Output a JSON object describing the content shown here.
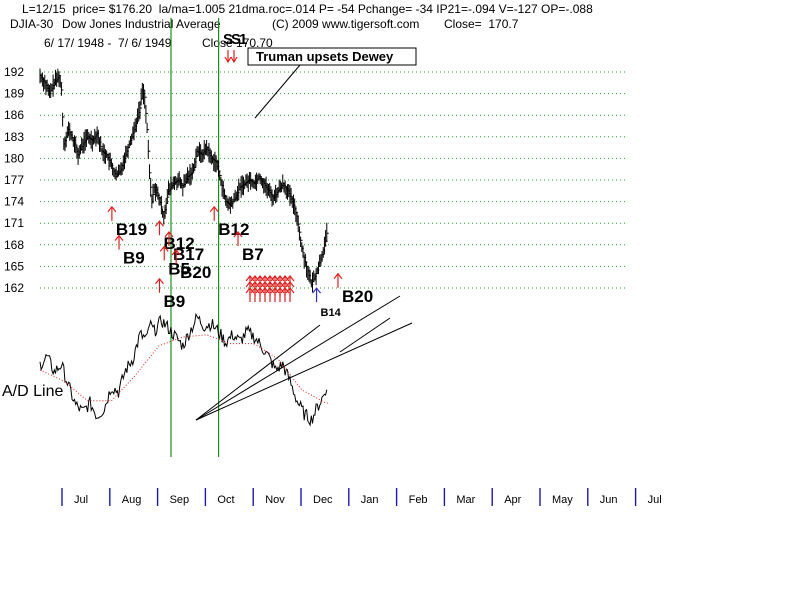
{
  "header": {
    "line1": "L=12/15  price= $176.20  la/ma=1.005 21dma.roc=.014 P= -54 Pchange= -34 IP21=-.094 V=-127 OP=-.088",
    "symbol": "DJIA-30",
    "name": "Dow Jones Industrial Average",
    "copyright": "(C) 2009 www.tigersoft.com",
    "close_label": "Close=  170.7",
    "date_range": "6/ 17/ 1948 -  7/ 6/ 1949",
    "close_overlay": "Close 170.70",
    "top_signal": "SS1"
  },
  "chart_data": {
    "type": "line",
    "title": "",
    "price_panel": {
      "type": "ohlc-bar",
      "y_ticks": [
        192,
        189,
        186,
        183,
        180,
        177,
        174,
        171,
        168,
        165,
        162
      ],
      "ylim": [
        159.5,
        193.5
      ],
      "grid": "horizontal dotted green",
      "close_series": [
        {
          "t": 0.0,
          "v": 191.5
        },
        {
          "t": 0.2,
          "v": 190.5
        },
        {
          "t": 0.4,
          "v": 189.0
        },
        {
          "t": 0.6,
          "v": 190.5
        },
        {
          "t": 0.8,
          "v": 191.5
        },
        {
          "t": 0.9,
          "v": 189.5
        },
        {
          "t": 1.0,
          "v": 182.0
        },
        {
          "t": 1.2,
          "v": 184.0
        },
        {
          "t": 1.4,
          "v": 182.5
        },
        {
          "t": 1.6,
          "v": 180.5
        },
        {
          "t": 1.8,
          "v": 182.0
        },
        {
          "t": 2.0,
          "v": 183.0
        },
        {
          "t": 2.2,
          "v": 182.5
        },
        {
          "t": 2.4,
          "v": 183.5
        },
        {
          "t": 2.6,
          "v": 181.0
        },
        {
          "t": 2.8,
          "v": 180.5
        },
        {
          "t": 3.0,
          "v": 179.0
        },
        {
          "t": 3.2,
          "v": 177.5
        },
        {
          "t": 3.4,
          "v": 178.5
        },
        {
          "t": 3.6,
          "v": 180.5
        },
        {
          "t": 3.8,
          "v": 182.5
        },
        {
          "t": 4.0,
          "v": 184.5
        },
        {
          "t": 4.2,
          "v": 187.0
        },
        {
          "t": 4.3,
          "v": 189.5
        },
        {
          "t": 4.4,
          "v": 188.5
        },
        {
          "t": 4.5,
          "v": 184.0
        },
        {
          "t": 4.6,
          "v": 178.0
        },
        {
          "t": 4.7,
          "v": 174.0
        },
        {
          "t": 4.8,
          "v": 176.0
        },
        {
          "t": 5.0,
          "v": 174.5
        },
        {
          "t": 5.2,
          "v": 172.0
        },
        {
          "t": 5.4,
          "v": 175.5
        },
        {
          "t": 5.6,
          "v": 176.5
        },
        {
          "t": 5.8,
          "v": 177.0
        },
        {
          "t": 6.0,
          "v": 176.0
        },
        {
          "t": 6.2,
          "v": 177.5
        },
        {
          "t": 6.4,
          "v": 178.0
        },
        {
          "t": 6.6,
          "v": 181.0
        },
        {
          "t": 6.8,
          "v": 180.5
        },
        {
          "t": 7.0,
          "v": 181.5
        },
        {
          "t": 7.2,
          "v": 180.0
        },
        {
          "t": 7.4,
          "v": 179.5
        },
        {
          "t": 7.6,
          "v": 177.0
        },
        {
          "t": 7.8,
          "v": 174.0
        },
        {
          "t": 8.0,
          "v": 173.5
        },
        {
          "t": 8.2,
          "v": 174.5
        },
        {
          "t": 8.4,
          "v": 176.0
        },
        {
          "t": 8.6,
          "v": 176.5
        },
        {
          "t": 8.8,
          "v": 177.0
        },
        {
          "t": 9.0,
          "v": 176.5
        },
        {
          "t": 9.2,
          "v": 177.5
        },
        {
          "t": 9.4,
          "v": 176.5
        },
        {
          "t": 9.6,
          "v": 175.5
        },
        {
          "t": 9.8,
          "v": 174.5
        },
        {
          "t": 10.0,
          "v": 175.5
        },
        {
          "t": 10.2,
          "v": 176.5
        },
        {
          "t": 10.4,
          "v": 175.5
        },
        {
          "t": 10.6,
          "v": 174.0
        },
        {
          "t": 10.8,
          "v": 172.0
        },
        {
          "t": 11.0,
          "v": 167.5
        },
        {
          "t": 11.2,
          "v": 165.0
        },
        {
          "t": 11.4,
          "v": 162.5
        },
        {
          "t": 11.6,
          "v": 164.0
        },
        {
          "t": 11.8,
          "v": 166.0
        },
        {
          "t": 12.0,
          "v": 168.5
        },
        {
          "t": 12.1,
          "v": 170.7
        }
      ]
    },
    "indicator_panel": {
      "label": "A/D Line",
      "series": [
        {
          "t": 0.0,
          "v": 0.55
        },
        {
          "t": 0.3,
          "v": 0.62
        },
        {
          "t": 0.6,
          "v": 0.48
        },
        {
          "t": 0.9,
          "v": 0.55
        },
        {
          "t": 1.2,
          "v": 0.35
        },
        {
          "t": 1.5,
          "v": 0.18
        },
        {
          "t": 1.8,
          "v": 0.12
        },
        {
          "t": 2.1,
          "v": 0.2
        },
        {
          "t": 2.4,
          "v": 0.08
        },
        {
          "t": 2.7,
          "v": 0.15
        },
        {
          "t": 3.0,
          "v": 0.35
        },
        {
          "t": 3.3,
          "v": 0.3
        },
        {
          "t": 3.6,
          "v": 0.5
        },
        {
          "t": 3.9,
          "v": 0.6
        },
        {
          "t": 4.2,
          "v": 0.82
        },
        {
          "t": 4.5,
          "v": 0.78
        },
        {
          "t": 4.6,
          "v": 0.92
        },
        {
          "t": 4.8,
          "v": 0.85
        },
        {
          "t": 5.1,
          "v": 0.95
        },
        {
          "t": 5.4,
          "v": 0.88
        },
        {
          "t": 5.7,
          "v": 0.8
        },
        {
          "t": 6.0,
          "v": 0.72
        },
        {
          "t": 6.3,
          "v": 0.85
        },
        {
          "t": 6.6,
          "v": 0.98
        },
        {
          "t": 6.9,
          "v": 0.9
        },
        {
          "t": 7.2,
          "v": 0.92
        },
        {
          "t": 7.5,
          "v": 0.85
        },
        {
          "t": 7.8,
          "v": 0.75
        },
        {
          "t": 8.1,
          "v": 0.82
        },
        {
          "t": 8.4,
          "v": 0.76
        },
        {
          "t": 8.7,
          "v": 0.85
        },
        {
          "t": 9.0,
          "v": 0.8
        },
        {
          "t": 9.3,
          "v": 0.72
        },
        {
          "t": 9.6,
          "v": 0.62
        },
        {
          "t": 9.9,
          "v": 0.5
        },
        {
          "t": 10.2,
          "v": 0.55
        },
        {
          "t": 10.5,
          "v": 0.4
        },
        {
          "t": 10.8,
          "v": 0.22
        },
        {
          "t": 11.1,
          "v": 0.1
        },
        {
          "t": 11.4,
          "v": 0.05
        },
        {
          "t": 11.7,
          "v": 0.18
        },
        {
          "t": 12.0,
          "v": 0.3
        },
        {
          "t": 12.1,
          "v": 0.45
        }
      ],
      "moving_average": [
        {
          "t": 0.0,
          "v": 0.5
        },
        {
          "t": 1.0,
          "v": 0.4
        },
        {
          "t": 2.0,
          "v": 0.22
        },
        {
          "t": 3.0,
          "v": 0.22
        },
        {
          "t": 4.0,
          "v": 0.45
        },
        {
          "t": 5.0,
          "v": 0.72
        },
        {
          "t": 6.0,
          "v": 0.8
        },
        {
          "t": 7.0,
          "v": 0.82
        },
        {
          "t": 8.0,
          "v": 0.74
        },
        {
          "t": 9.0,
          "v": 0.74
        },
        {
          "t": 10.0,
          "v": 0.6
        },
        {
          "t": 11.0,
          "v": 0.32
        },
        {
          "t": 12.0,
          "v": 0.2
        },
        {
          "t": 12.1,
          "v": 0.2
        }
      ]
    },
    "x_ticks": [
      "Jul",
      "Aug",
      "Sep",
      "Oct",
      "Nov",
      "Dec",
      "Jan",
      "Feb",
      "Mar",
      "Apr",
      "May",
      "Jun",
      "Jul"
    ],
    "vertical_lines": [
      5.0,
      7.0
    ],
    "annotation": "Truman upsets Dewey",
    "signals": [
      {
        "label": "B19",
        "t": 2.6,
        "v": 170.5
      },
      {
        "label": "B9",
        "t": 2.9,
        "v": 166.5
      },
      {
        "label": "B12",
        "t": 4.6,
        "v": 168.5
      },
      {
        "label": "B17",
        "t": 5.0,
        "v": 167.0
      },
      {
        "label": "B5",
        "t": 4.8,
        "v": 165.0
      },
      {
        "label": "B20",
        "t": 5.3,
        "v": 164.5
      },
      {
        "label": "B9",
        "t": 4.6,
        "v": 160.5
      },
      {
        "label": "B12",
        "t": 6.9,
        "v": 170.5
      },
      {
        "label": "B7",
        "t": 7.9,
        "v": 167.0
      },
      {
        "label": "B14",
        "t": 11.2,
        "v": 159.2
      },
      {
        "label": "B20",
        "t": 12.1,
        "v": 161.2
      }
    ]
  }
}
